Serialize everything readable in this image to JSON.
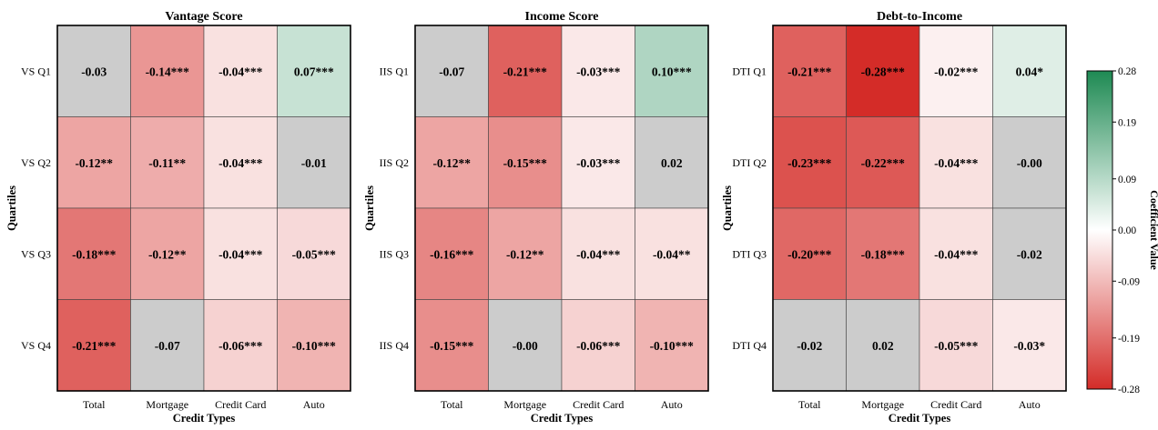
{
  "chart_data": [
    {
      "type": "heatmap",
      "title": "Vantage Score",
      "xlabel": "Credit Types",
      "ylabel": "Quartiles",
      "columns": [
        "Total",
        "Mortgage",
        "Credit Card",
        "Auto"
      ],
      "rows": [
        "VS Q1",
        "VS Q2",
        "VS Q3",
        "VS Q4"
      ],
      "values": [
        [
          -0.03,
          -0.14,
          -0.04,
          0.07
        ],
        [
          -0.12,
          -0.11,
          -0.04,
          -0.01
        ],
        [
          -0.18,
          -0.12,
          -0.04,
          -0.05
        ],
        [
          -0.21,
          -0.07,
          -0.06,
          -0.1
        ]
      ],
      "labels": [
        [
          "-0.03",
          "-0.14***",
          "-0.04***",
          "0.07***"
        ],
        [
          "-0.12**",
          "-0.11**",
          "-0.04***",
          "-0.01"
        ],
        [
          "-0.18***",
          "-0.12**",
          "-0.04***",
          "-0.05***"
        ],
        [
          "-0.21***",
          "-0.07",
          "-0.06***",
          "-0.10***"
        ]
      ],
      "significant": [
        [
          false,
          true,
          true,
          true
        ],
        [
          true,
          true,
          true,
          false
        ],
        [
          true,
          true,
          true,
          true
        ],
        [
          true,
          false,
          true,
          true
        ]
      ]
    },
    {
      "type": "heatmap",
      "title": "Income Score",
      "xlabel": "Credit Types",
      "ylabel": "Quartiles",
      "columns": [
        "Total",
        "Mortgage",
        "Credit Card",
        "Auto"
      ],
      "rows": [
        "IIS Q1",
        "IIS Q2",
        "IIS Q3",
        "IIS Q4"
      ],
      "values": [
        [
          -0.07,
          -0.21,
          -0.03,
          0.1
        ],
        [
          -0.12,
          -0.15,
          -0.03,
          0.02
        ],
        [
          -0.16,
          -0.12,
          -0.04,
          -0.04
        ],
        [
          -0.15,
          -0.0,
          -0.06,
          -0.1
        ]
      ],
      "labels": [
        [
          "-0.07",
          "-0.21***",
          "-0.03***",
          "0.10***"
        ],
        [
          "-0.12**",
          "-0.15***",
          "-0.03***",
          "0.02"
        ],
        [
          "-0.16***",
          "-0.12**",
          "-0.04***",
          "-0.04**"
        ],
        [
          "-0.15***",
          "-0.00",
          "-0.06***",
          "-0.10***"
        ]
      ],
      "significant": [
        [
          false,
          true,
          true,
          true
        ],
        [
          true,
          true,
          true,
          false
        ],
        [
          true,
          true,
          true,
          true
        ],
        [
          true,
          false,
          true,
          true
        ]
      ]
    },
    {
      "type": "heatmap",
      "title": "Debt-to-Income",
      "xlabel": "Credit Types",
      "ylabel": "Quartiles",
      "columns": [
        "Total",
        "Mortgage",
        "Credit Card",
        "Auto"
      ],
      "rows": [
        "DTI Q1",
        "DTI Q2",
        "DTI Q3",
        "DTI Q4"
      ],
      "values": [
        [
          -0.21,
          -0.28,
          -0.02,
          0.04
        ],
        [
          -0.23,
          -0.22,
          -0.04,
          -0.0
        ],
        [
          -0.2,
          -0.18,
          -0.04,
          -0.02
        ],
        [
          -0.02,
          0.02,
          -0.05,
          -0.03
        ]
      ],
      "labels": [
        [
          "-0.21***",
          "-0.28***",
          "-0.02***",
          "0.04*"
        ],
        [
          "-0.23***",
          "-0.22***",
          "-0.04***",
          "-0.00"
        ],
        [
          "-0.20***",
          "-0.18***",
          "-0.04***",
          "-0.02"
        ],
        [
          "-0.02",
          "0.02",
          "-0.05***",
          "-0.03*"
        ]
      ],
      "significant": [
        [
          true,
          true,
          true,
          true
        ],
        [
          true,
          true,
          true,
          false
        ],
        [
          true,
          true,
          true,
          false
        ],
        [
          false,
          false,
          true,
          true
        ]
      ]
    }
  ],
  "colorbar": {
    "label": "Coefficient Value",
    "range": [
      -0.28,
      0.28
    ],
    "ticks": [
      "0.28",
      "0.19",
      "0.09",
      "0.00",
      "-0.09",
      "-0.19",
      "-0.28"
    ],
    "tick_values": [
      0.28,
      0.19,
      0.09,
      0.0,
      -0.09,
      -0.19,
      -0.28
    ],
    "colors": {
      "negative": "#d42c28",
      "zero": "#ffffff",
      "positive": "#1e8a53",
      "insignificant": "#cccccc"
    }
  }
}
